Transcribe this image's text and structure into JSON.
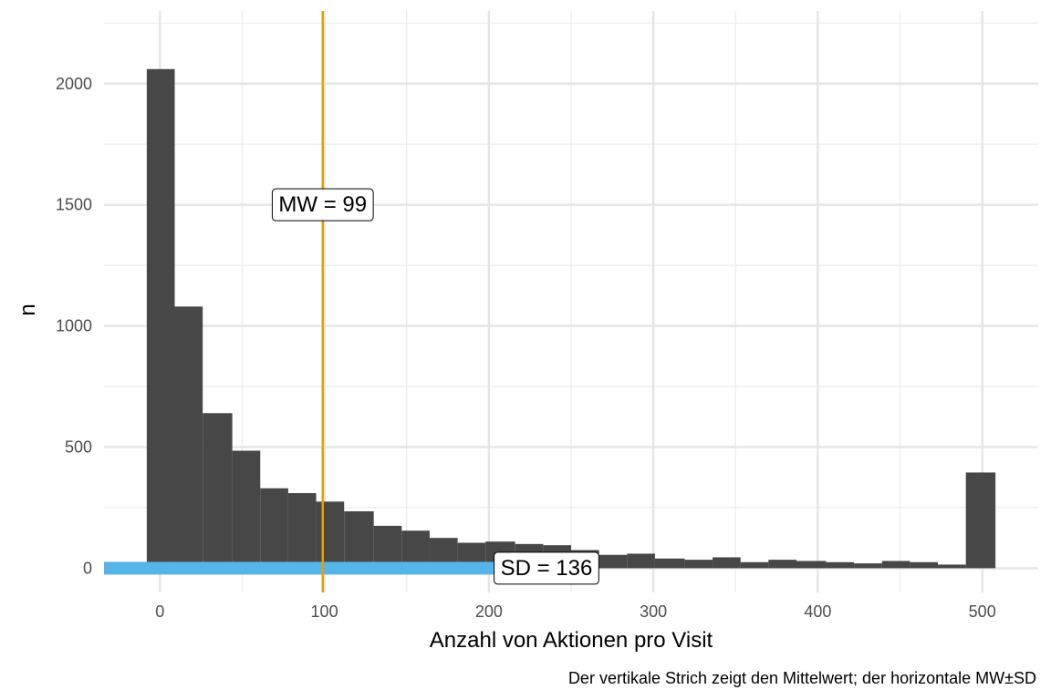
{
  "chart_data": {
    "type": "bar",
    "xlabel": "Anzahl von Aktionen pro Visit",
    "ylabel": "n",
    "caption": "Der vertikale Strich zeigt den Mittelwert; der horizontale MW±SD",
    "xlim": [
      -34,
      534
    ],
    "ylim": [
      -100,
      2300
    ],
    "x_ticks": [
      0,
      100,
      200,
      300,
      400,
      500
    ],
    "y_ticks": [
      0,
      500,
      1000,
      1500,
      2000
    ],
    "grid": true,
    "bar_color": "#474747",
    "bins": [
      {
        "xmin": -8,
        "xmax": 9,
        "count": 2060
      },
      {
        "xmin": 9,
        "xmax": 26,
        "count": 1080
      },
      {
        "xmin": 26,
        "xmax": 44,
        "count": 640
      },
      {
        "xmin": 44,
        "xmax": 61,
        "count": 485
      },
      {
        "xmin": 61,
        "xmax": 78,
        "count": 330
      },
      {
        "xmin": 78,
        "xmax": 95,
        "count": 310
      },
      {
        "xmin": 95,
        "xmax": 112,
        "count": 275
      },
      {
        "xmin": 112,
        "xmax": 130,
        "count": 235
      },
      {
        "xmin": 130,
        "xmax": 147,
        "count": 175
      },
      {
        "xmin": 147,
        "xmax": 164,
        "count": 155
      },
      {
        "xmin": 164,
        "xmax": 181,
        "count": 125
      },
      {
        "xmin": 181,
        "xmax": 198,
        "count": 105
      },
      {
        "xmin": 198,
        "xmax": 216,
        "count": 110
      },
      {
        "xmin": 216,
        "xmax": 233,
        "count": 100
      },
      {
        "xmin": 233,
        "xmax": 250,
        "count": 95
      },
      {
        "xmin": 250,
        "xmax": 267,
        "count": 75
      },
      {
        "xmin": 267,
        "xmax": 284,
        "count": 55
      },
      {
        "xmin": 284,
        "xmax": 301,
        "count": 60
      },
      {
        "xmin": 301,
        "xmax": 319,
        "count": 40
      },
      {
        "xmin": 319,
        "xmax": 336,
        "count": 35
      },
      {
        "xmin": 336,
        "xmax": 353,
        "count": 45
      },
      {
        "xmin": 353,
        "xmax": 370,
        "count": 25
      },
      {
        "xmin": 370,
        "xmax": 387,
        "count": 35
      },
      {
        "xmin": 387,
        "xmax": 405,
        "count": 30
      },
      {
        "xmin": 405,
        "xmax": 422,
        "count": 25
      },
      {
        "xmin": 422,
        "xmax": 439,
        "count": 20
      },
      {
        "xmin": 439,
        "xmax": 456,
        "count": 30
      },
      {
        "xmin": 456,
        "xmax": 473,
        "count": 25
      },
      {
        "xmin": 473,
        "xmax": 490,
        "count": 15
      },
      {
        "xmin": 490,
        "xmax": 508,
        "count": 395
      }
    ],
    "mean": {
      "value": 99,
      "label": "MW = 99",
      "color": "#E69F00",
      "label_y": 1500
    },
    "sd": {
      "value": 136,
      "label": "SD = 136",
      "color": "#56B4E9",
      "from": -37,
      "to": 235,
      "y": 0,
      "label_x": 235
    }
  }
}
